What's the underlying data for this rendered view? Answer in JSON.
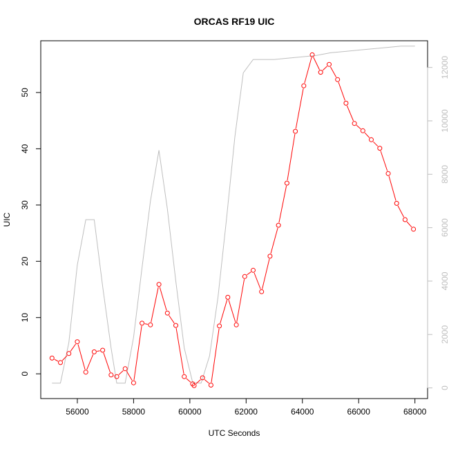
{
  "chart_data": {
    "type": "line",
    "title": "ORCAS RF19 UIC",
    "xlabel": "UTC Seconds",
    "ylabel": "UIC",
    "xlim": [
      54700,
      68450
    ],
    "ylim": [
      -4.4,
      59.2
    ],
    "y2lim": [
      -400,
      13000
    ],
    "x_ticks": [
      56000,
      58000,
      60000,
      62000,
      64000,
      66000,
      68000
    ],
    "y_ticks": [
      0,
      10,
      20,
      30,
      40,
      50
    ],
    "y2_ticks": [
      0,
      2000,
      4000,
      6000,
      8000,
      10000,
      12000
    ],
    "grid": false,
    "legend": "none",
    "colors": {
      "uic_series": "#ff0000",
      "secondary_series": "#bebebe",
      "axis": "#000000",
      "right_axis": "#bebebe"
    },
    "series": [
      {
        "axis": "left",
        "style": "line+open-circles",
        "x": [
          55100,
          55400,
          55700,
          56000,
          56300,
          56600,
          56900,
          57200,
          57400,
          57700,
          58000,
          58300,
          58600,
          58900,
          59200,
          59500,
          59800,
          60100,
          60150,
          60450,
          60750,
          61050,
          61350,
          61650,
          61950,
          62250,
          62550,
          62850,
          63150,
          63450,
          63750,
          64050,
          64350,
          64650,
          64950,
          65250,
          65550,
          65850,
          66150,
          66450,
          66750,
          67050,
          67350,
          67650,
          67950
        ],
        "y": [
          2.8,
          2.0,
          3.6,
          5.7,
          0.3,
          3.9,
          4.2,
          -0.2,
          -0.5,
          0.9,
          -1.6,
          9.0,
          8.7,
          15.9,
          10.8,
          8.6,
          -0.5,
          -1.8,
          -2.1,
          -0.7,
          -2.0,
          8.5,
          13.6,
          8.7,
          17.3,
          18.4,
          14.6,
          20.9,
          26.4,
          33.9,
          43.1,
          51.2,
          56.7,
          53.6,
          55.0,
          52.3,
          48.1,
          44.5,
          43.2,
          41.6,
          40.1,
          35.6,
          30.3,
          27.4,
          25.7
        ]
      },
      {
        "axis": "right",
        "style": "line",
        "x": [
          55100,
          55400,
          55700,
          56000,
          56300,
          56600,
          56900,
          57200,
          57400,
          57700,
          58000,
          58300,
          58600,
          58900,
          59200,
          59500,
          59800,
          60100,
          60400,
          60700,
          61000,
          61300,
          61600,
          61900,
          62250,
          62550,
          63000,
          63500,
          64000,
          64500,
          65000,
          65500,
          66000,
          66500,
          67000,
          67500,
          68000
        ],
        "y": [
          180,
          180,
          1700,
          4600,
          6300,
          6300,
          3800,
          1500,
          180,
          180,
          1900,
          4500,
          7000,
          8900,
          6700,
          4000,
          1500,
          200,
          180,
          1200,
          3400,
          6300,
          9400,
          11800,
          12300,
          12300,
          12300,
          12350,
          12400,
          12450,
          12550,
          12600,
          12650,
          12700,
          12750,
          12800,
          12800
        ]
      }
    ]
  }
}
